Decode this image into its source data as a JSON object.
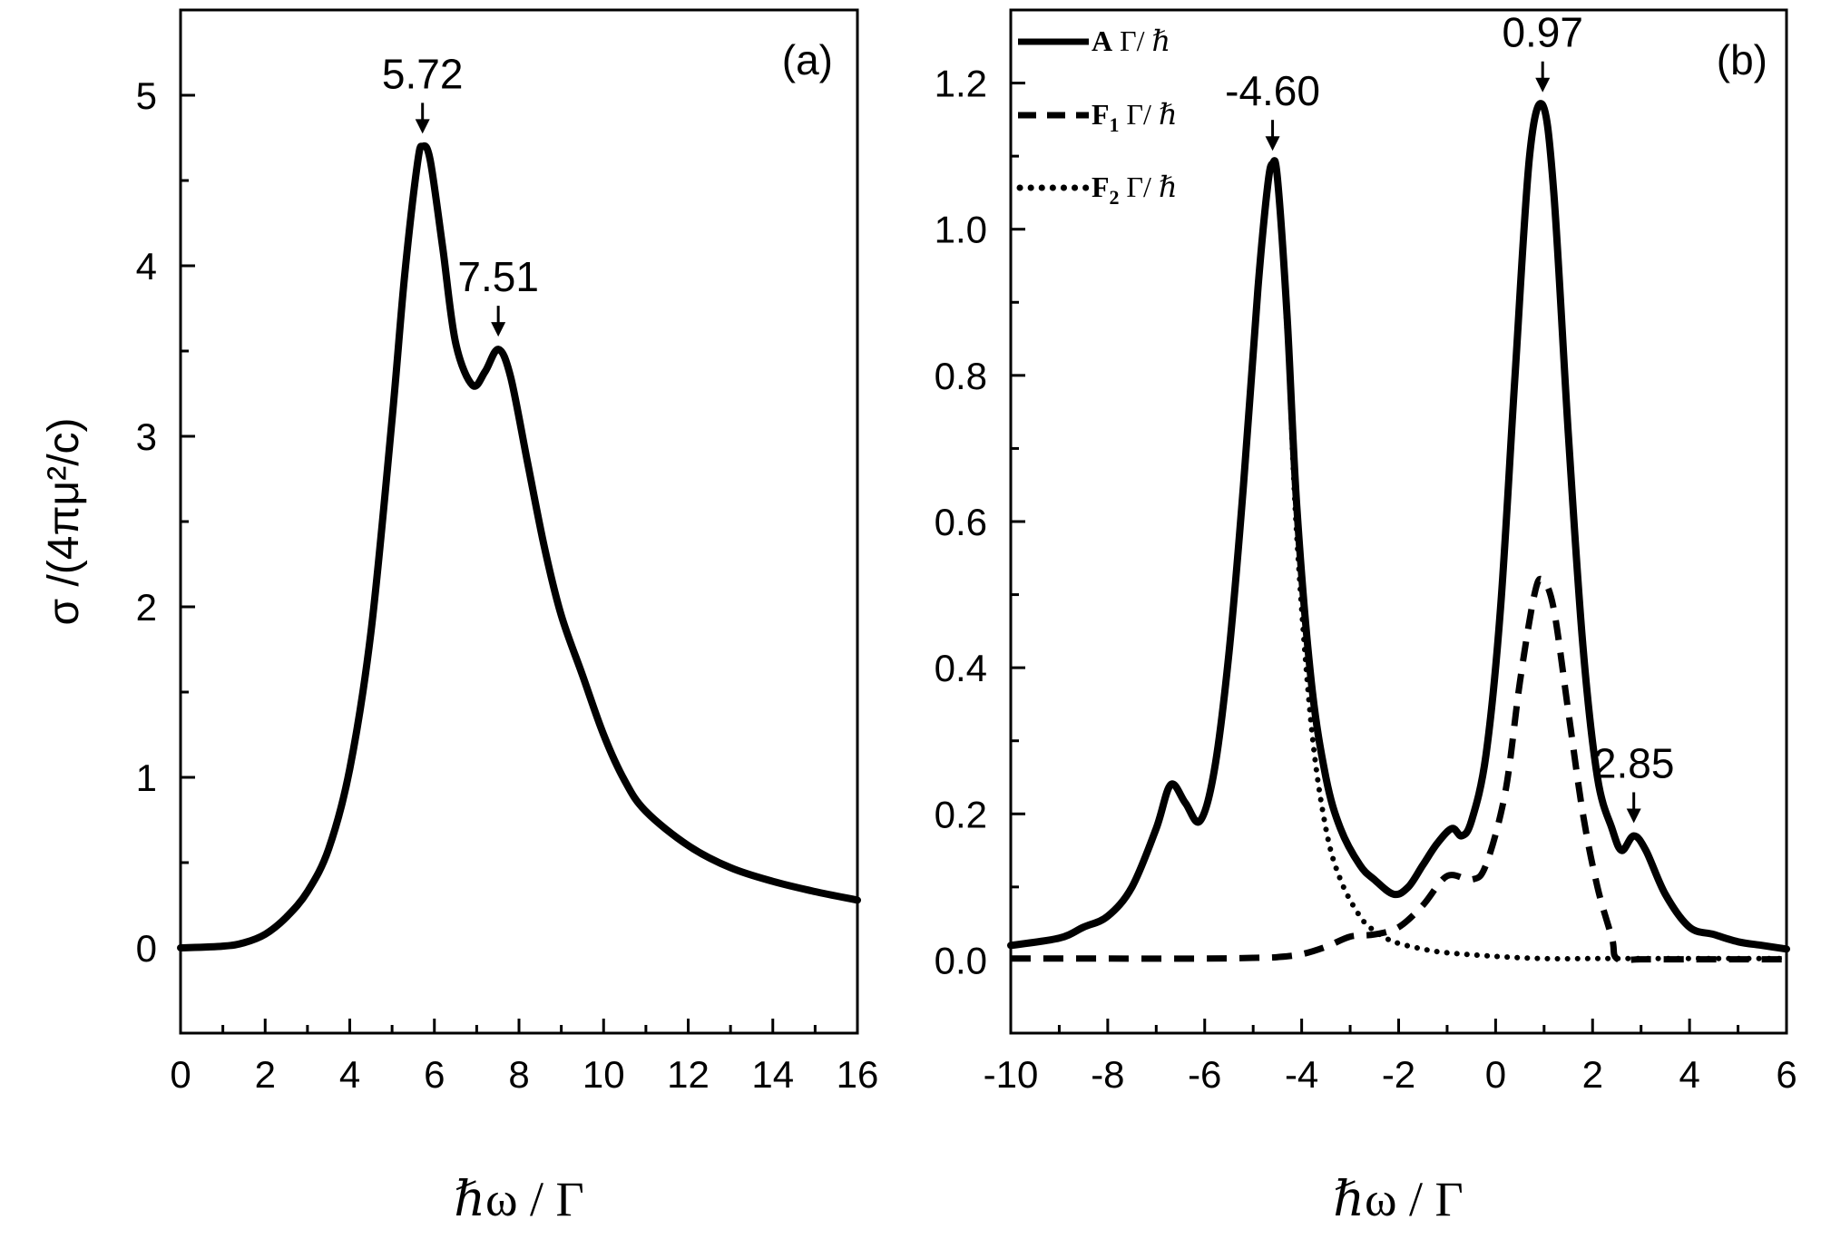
{
  "chart_data": [
    {
      "panel": "(a)",
      "type": "line",
      "xlabel": "ℏω / Γ",
      "ylabel": "σ /(4πμ²/c)",
      "xlim": [
        0,
        16
      ],
      "ylim": [
        -0.5,
        5.5
      ],
      "xticks": [
        "0",
        "2",
        "4",
        "6",
        "8",
        "10",
        "12",
        "14",
        "16"
      ],
      "yticks": [
        "0",
        "1",
        "2",
        "3",
        "4",
        "5"
      ],
      "series": [
        {
          "name": "σ",
          "style": "solid",
          "x": [
            0,
            1,
            1.5,
            2,
            2.5,
            3,
            3.5,
            4,
            4.5,
            5,
            5.3,
            5.6,
            5.72,
            5.9,
            6.2,
            6.5,
            6.9,
            7.2,
            7.51,
            7.8,
            8.2,
            8.6,
            9,
            9.5,
            10,
            10.5,
            11,
            12,
            13,
            14,
            15,
            16
          ],
          "y": [
            0,
            0.01,
            0.03,
            0.08,
            0.18,
            0.33,
            0.58,
            1.05,
            1.85,
            3.1,
            3.95,
            4.6,
            4.7,
            4.62,
            4.1,
            3.55,
            3.3,
            3.38,
            3.51,
            3.35,
            2.85,
            2.35,
            1.95,
            1.6,
            1.25,
            0.98,
            0.8,
            0.6,
            0.47,
            0.39,
            0.33,
            0.28
          ]
        }
      ],
      "annotations": [
        {
          "label": "5.72",
          "x": 5.72,
          "y": 4.7
        },
        {
          "label": "7.51",
          "x": 7.51,
          "y": 3.51
        }
      ]
    },
    {
      "panel": "(b)",
      "type": "line",
      "xlabel": "ℏω / Γ",
      "xlim": [
        -10,
        6
      ],
      "ylim": [
        -0.1,
        1.3
      ],
      "xticks": [
        "-10",
        "-8",
        "-6",
        "-4",
        "-2",
        "0",
        "2",
        "4",
        "6"
      ],
      "yticks": [
        "0.0",
        "0.2",
        "0.4",
        "0.6",
        "0.8",
        "1.0",
        "1.2"
      ],
      "legend": [
        {
          "main": "A",
          "sub": "",
          "unit": " Γ/ ℏ"
        },
        {
          "main": "F",
          "sub": "1",
          "unit": " Γ/ ℏ"
        },
        {
          "main": "F",
          "sub": "2",
          "unit": " Γ/ ℏ"
        }
      ],
      "series": [
        {
          "name": "A Γ/ ℏ",
          "style": "solid",
          "x": [
            -10,
            -9,
            -8.5,
            -8,
            -7.5,
            -7,
            -6.7,
            -6.4,
            -6.1,
            -5.8,
            -5.5,
            -5.2,
            -4.9,
            -4.7,
            -4.6,
            -4.5,
            -4.3,
            -4.1,
            -3.8,
            -3.5,
            -3.2,
            -2.8,
            -2.5,
            -2.1,
            -1.8,
            -1.5,
            -1.2,
            -0.9,
            -0.7,
            -0.5,
            -0.2,
            0.1,
            0.4,
            0.7,
            0.97,
            1.2,
            1.5,
            1.8,
            2.1,
            2.4,
            2.6,
            2.85,
            3.1,
            3.5,
            4,
            4.5,
            5,
            5.5,
            6
          ],
          "y": [
            0.02,
            0.03,
            0.045,
            0.06,
            0.1,
            0.18,
            0.24,
            0.215,
            0.19,
            0.26,
            0.42,
            0.65,
            0.92,
            1.06,
            1.09,
            1.07,
            0.88,
            0.62,
            0.38,
            0.25,
            0.18,
            0.13,
            0.11,
            0.09,
            0.1,
            0.13,
            0.16,
            0.18,
            0.17,
            0.19,
            0.28,
            0.48,
            0.8,
            1.1,
            1.17,
            1.05,
            0.72,
            0.43,
            0.25,
            0.18,
            0.15,
            0.17,
            0.15,
            0.09,
            0.045,
            0.035,
            0.025,
            0.02,
            0.015
          ]
        },
        {
          "name": "F1 Γ/ ℏ",
          "style": "dashed",
          "x": [
            -10,
            -8,
            -6,
            -5,
            -4.5,
            -4,
            -3.5,
            -3,
            -2.5,
            -2,
            -1.5,
            -1,
            -0.5,
            -0.2,
            0.2,
            0.5,
            0.8,
            0.97,
            1.2,
            1.5,
            1.8,
            2.1,
            2.4,
            2.5,
            3,
            4,
            5,
            6
          ],
          "y": [
            0.002,
            0.002,
            0.002,
            0.003,
            0.004,
            0.008,
            0.018,
            0.032,
            0.035,
            0.045,
            0.075,
            0.115,
            0.11,
            0.13,
            0.23,
            0.38,
            0.5,
            0.52,
            0.48,
            0.34,
            0.2,
            0.1,
            0.03,
            0.002,
            0.001,
            0.001,
            0.001,
            0.001
          ]
        },
        {
          "name": "F2 Γ/ ℏ",
          "style": "dotted",
          "x": [
            -10,
            -9,
            -8.5,
            -8,
            -7.5,
            -7,
            -6.7,
            -6.4,
            -6.1,
            -5.8,
            -5.5,
            -5.2,
            -4.9,
            -4.7,
            -4.6,
            -4.5,
            -4.3,
            -4.1,
            -3.8,
            -3.5,
            -3.2,
            -2.8,
            -2.5,
            -2.1,
            -1.5,
            -1,
            0,
            1,
            2,
            3,
            4,
            5,
            6
          ],
          "y": [
            0.02,
            0.03,
            0.045,
            0.06,
            0.1,
            0.18,
            0.24,
            0.215,
            0.19,
            0.26,
            0.42,
            0.65,
            0.92,
            1.06,
            1.09,
            1.07,
            0.86,
            0.58,
            0.32,
            0.18,
            0.11,
            0.06,
            0.04,
            0.025,
            0.015,
            0.01,
            0.005,
            0.002,
            0.002,
            0.002,
            0.002,
            0.002,
            0.002
          ]
        }
      ],
      "annotations": [
        {
          "label": "-4.60",
          "x": -4.6,
          "y": 1.09
        },
        {
          "label": "0.97",
          "x": 0.97,
          "y": 1.17
        },
        {
          "label": "2.85",
          "x": 2.85,
          "y": 0.17
        }
      ]
    }
  ]
}
